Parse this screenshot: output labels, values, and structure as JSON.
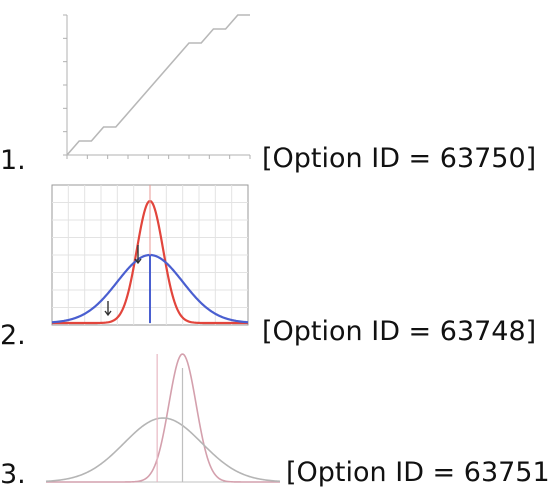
{
  "options": [
    {
      "number": "1.",
      "option_id_text": "[Option ID = 63750]",
      "chart_data": {
        "type": "line",
        "x": [
          -3,
          -2.6,
          -2.2,
          -1.8,
          -1.4,
          -1.0,
          -0.6,
          -0.2,
          0.2,
          0.6,
          1.0,
          1.4,
          1.8,
          2.2,
          2.6,
          3.0
        ],
        "y": [
          0.0,
          0.1,
          0.1,
          0.2,
          0.2,
          0.3,
          0.4,
          0.5,
          0.6,
          0.7,
          0.8,
          0.8,
          0.9,
          0.9,
          1.0,
          1.0
        ],
        "title": "",
        "xlabel": "",
        "ylabel": "",
        "grid": false,
        "colors": {
          "line": "#b8b8b8",
          "axis": "#b0b0b0"
        }
      }
    },
    {
      "number": "2.",
      "option_id_text": "[Option ID = 63748]",
      "chart_data": {
        "type": "line",
        "grid": true,
        "series": [
          {
            "mean": 0,
            "sd": 0.4,
            "color": "#e2453c"
          },
          {
            "mean": 0,
            "sd": 1.0,
            "color": "#4a5fd0"
          }
        ],
        "center_line_color": "#4a5fd0",
        "xlim": [
          -3,
          3
        ],
        "title": "",
        "xlabel": "",
        "ylabel": ""
      }
    },
    {
      "number": "3.",
      "option_id_text": "[Option ID = 63751]",
      "chart_data": {
        "type": "line",
        "grid": false,
        "series": [
          {
            "mean": 0.5,
            "sd": 0.35,
            "color": "#d4a0ad"
          },
          {
            "mean": 0,
            "sd": 1.0,
            "color": "#b5b5b5"
          }
        ],
        "markers_at": [
          -0.15,
          0.5
        ],
        "xlim": [
          -3,
          3
        ],
        "title": "",
        "xlabel": "",
        "ylabel": ""
      }
    }
  ]
}
